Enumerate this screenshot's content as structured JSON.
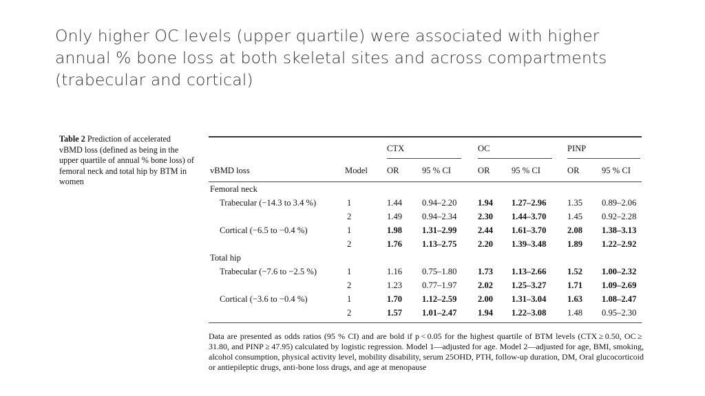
{
  "slide_title": "Only higher OC levels (upper quartile) were associated with higher annual % bone loss at both skeletal sites and across compartments (trabecular and cortical)",
  "caption": {
    "label": "Table 2",
    "text": "Prediction of accelerated vBMD loss (defined as being in the upper quartile of annual % bone loss) of femoral neck and total hip by BTM in women"
  },
  "table": {
    "groups": [
      "CTX",
      "OC",
      "PINP"
    ],
    "col_vbmd": "vBMD loss",
    "col_model": "Model",
    "col_or": "OR",
    "col_ci": "95 % CI",
    "sections": [
      {
        "name": "Femoral neck",
        "rows": [
          {
            "label": "Trabecular (−14.3 to 3.4 %)",
            "model": "1",
            "vals": [
              "1.44",
              "0.94–2.20",
              "1.94",
              "1.27–2.96",
              "1.35",
              "0.89–2.06"
            ],
            "bold": [
              false,
              false,
              true,
              true,
              false,
              false
            ]
          },
          {
            "label": "",
            "model": "2",
            "vals": [
              "1.49",
              "0.94–2.34",
              "2.30",
              "1.44–3.70",
              "1.45",
              "0.92–2.28"
            ],
            "bold": [
              false,
              false,
              true,
              true,
              false,
              false
            ]
          },
          {
            "label": "Cortical (−6.5 to −0.4 %)",
            "model": "1",
            "vals": [
              "1.98",
              "1.31–2.99",
              "2.44",
              "1.61–3.70",
              "2.08",
              "1.38–3.13"
            ],
            "bold": [
              true,
              true,
              true,
              true,
              true,
              true
            ]
          },
          {
            "label": "",
            "model": "2",
            "vals": [
              "1.76",
              "1.13–2.75",
              "2.20",
              "1.39–3.48",
              "1.89",
              "1.22–2.92"
            ],
            "bold": [
              true,
              true,
              true,
              true,
              true,
              true
            ]
          }
        ]
      },
      {
        "name": "Total hip",
        "rows": [
          {
            "label": "Trabecular (−7.6 to −2.5 %)",
            "model": "1",
            "vals": [
              "1.16",
              "0.75–1.80",
              "1.73",
              "1.13–2.66",
              "1.52",
              "1.00–2.32"
            ],
            "bold": [
              false,
              false,
              true,
              true,
              true,
              true
            ]
          },
          {
            "label": "",
            "model": "2",
            "vals": [
              "1.23",
              "0.77–1.97",
              "2.02",
              "1.25–3.27",
              "1.71",
              "1.09–2.69"
            ],
            "bold": [
              false,
              false,
              true,
              true,
              true,
              true
            ]
          },
          {
            "label": "Cortical (−3.6 to −0.4 %)",
            "model": "1",
            "vals": [
              "1.70",
              "1.12–2.59",
              "2.00",
              "1.31–3.04",
              "1.63",
              "1.08–2.47"
            ],
            "bold": [
              true,
              true,
              true,
              true,
              true,
              true
            ]
          },
          {
            "label": "",
            "model": "2",
            "vals": [
              "1.57",
              "1.01–2.47",
              "1.94",
              "1.22–3.08",
              "1.48",
              "0.95–2.30"
            ],
            "bold": [
              true,
              true,
              true,
              true,
              false,
              false
            ]
          }
        ]
      }
    ]
  },
  "footnote": "Data are presented as odds ratios (95 % CI) and are bold if p < 0.05 for the highest quartile of BTM levels (CTX ≥ 0.50, OC ≥ 31.80, and PINP ≥ 47.95) calculated by logistic regression. Model 1—adjusted for age. Model 2—adjusted for age, BMI, smoking, alcohol consumption, physical activity level, mobility disability, serum 25OHD, PTH, follow-up duration, DM, Oral glucocorticoid or antiepileptic drugs, anti-bone loss drugs, and age at menopause"
}
